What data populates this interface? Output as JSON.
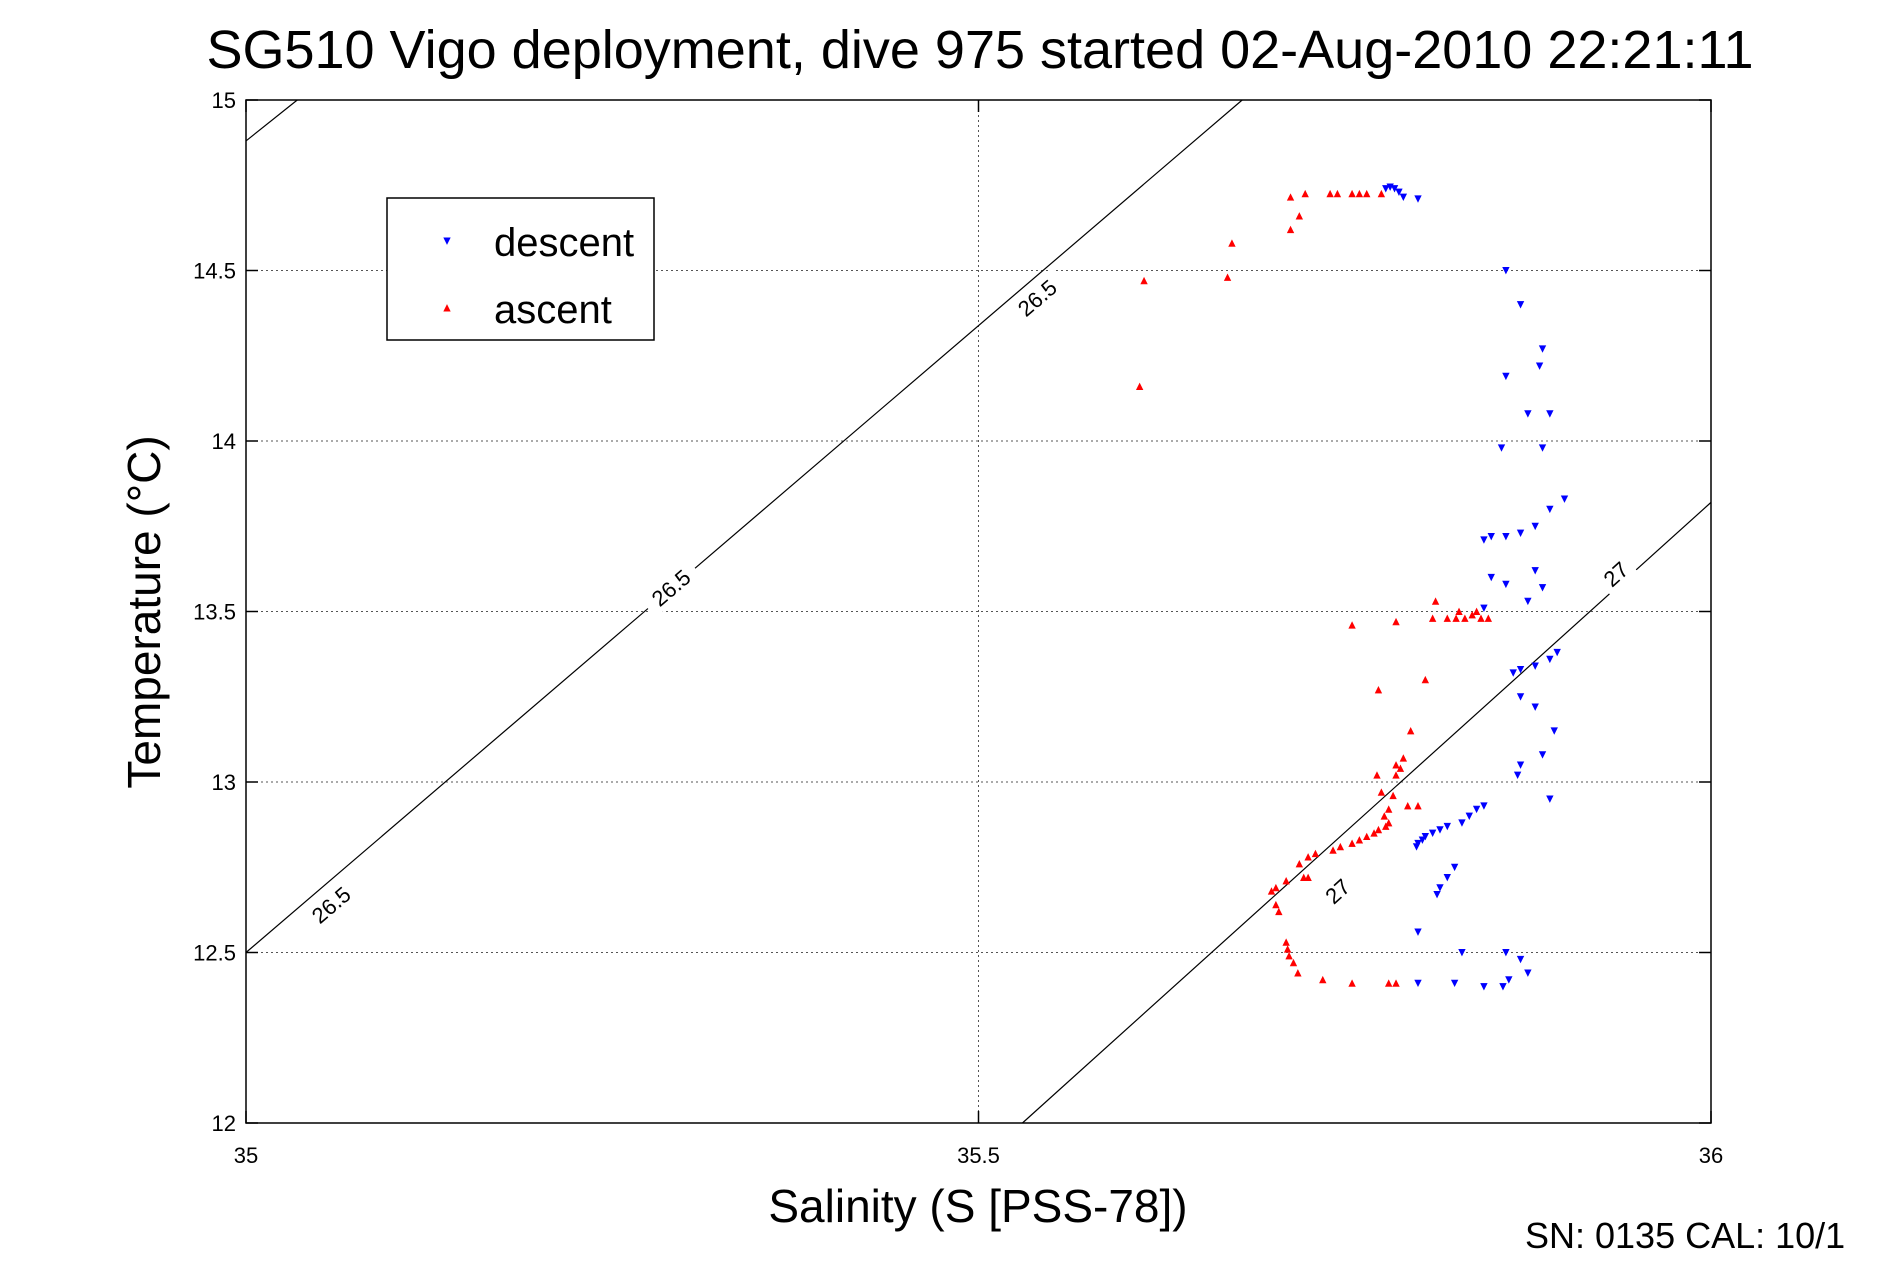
{
  "chart_data": {
    "type": "scatter",
    "title": "SG510 Vigo deployment, dive 975 started 02-Aug-2010 22:21:11",
    "xlabel": "Salinity (S [PSS-78])",
    "ylabel": "Temperature (°C)",
    "xlim": [
      35,
      36
    ],
    "ylim": [
      12,
      15
    ],
    "x_ticks": [
      "35",
      "35.5",
      "36"
    ],
    "y_ticks": [
      "12",
      "12.5",
      "13",
      "13.5",
      "14",
      "14.5",
      "15"
    ],
    "grid": true,
    "legend_position": "top-left",
    "contours": [
      {
        "value": "26.5",
        "lines": [
          [
            [
              35,
              14.88
            ],
            [
              35.035,
              15
            ]
          ],
          [
            [
              35,
              12.5
            ],
            [
              35.68,
              15
            ]
          ]
        ],
        "labels": [
          [
            35.058,
            12.64
          ],
          [
            35.29,
            13.57
          ],
          [
            35.54,
            14.42
          ]
        ]
      },
      {
        "value": "27",
        "lines": [
          [
            [
              35.53,
              12
            ],
            [
              36,
              13.82
            ]
          ]
        ],
        "labels": [
          [
            35.745,
            12.68
          ],
          [
            35.935,
            13.61
          ]
        ]
      }
    ],
    "series": [
      {
        "name": "descent",
        "color": "#0000ff",
        "marker": "triangle-down",
        "points": [
          [
            35.778,
            14.74
          ],
          [
            35.781,
            14.745
          ],
          [
            35.784,
            14.74
          ],
          [
            35.787,
            14.73
          ],
          [
            35.79,
            14.715
          ],
          [
            35.8,
            14.71
          ],
          [
            35.86,
            14.5
          ],
          [
            35.87,
            14.4
          ],
          [
            35.885,
            14.27
          ],
          [
            35.883,
            14.22
          ],
          [
            35.86,
            14.19
          ],
          [
            35.875,
            14.08
          ],
          [
            35.89,
            14.08
          ],
          [
            35.857,
            13.98
          ],
          [
            35.885,
            13.98
          ],
          [
            35.9,
            13.83
          ],
          [
            35.89,
            13.8
          ],
          [
            35.88,
            13.75
          ],
          [
            35.87,
            13.73
          ],
          [
            35.86,
            13.72
          ],
          [
            35.85,
            13.72
          ],
          [
            35.845,
            13.71
          ],
          [
            35.88,
            13.62
          ],
          [
            35.85,
            13.6
          ],
          [
            35.86,
            13.58
          ],
          [
            35.885,
            13.57
          ],
          [
            35.875,
            13.53
          ],
          [
            35.845,
            13.51
          ],
          [
            35.895,
            13.38
          ],
          [
            35.89,
            13.36
          ],
          [
            35.88,
            13.34
          ],
          [
            35.87,
            13.33
          ],
          [
            35.865,
            13.32
          ],
          [
            35.87,
            13.25
          ],
          [
            35.88,
            13.22
          ],
          [
            35.893,
            13.15
          ],
          [
            35.885,
            13.08
          ],
          [
            35.87,
            13.05
          ],
          [
            35.868,
            13.02
          ],
          [
            35.89,
            12.95
          ],
          [
            35.845,
            12.93
          ],
          [
            35.84,
            12.92
          ],
          [
            35.835,
            12.9
          ],
          [
            35.83,
            12.88
          ],
          [
            35.82,
            12.87
          ],
          [
            35.815,
            12.86
          ],
          [
            35.81,
            12.85
          ],
          [
            35.805,
            12.84
          ],
          [
            35.803,
            12.83
          ],
          [
            35.8,
            12.82
          ],
          [
            35.799,
            12.81
          ],
          [
            35.825,
            12.75
          ],
          [
            35.82,
            12.72
          ],
          [
            35.815,
            12.69
          ],
          [
            35.813,
            12.67
          ],
          [
            35.8,
            12.56
          ],
          [
            35.83,
            12.5
          ],
          [
            35.86,
            12.5
          ],
          [
            35.87,
            12.48
          ],
          [
            35.875,
            12.44
          ],
          [
            35.862,
            12.42
          ],
          [
            35.858,
            12.4
          ],
          [
            35.845,
            12.4
          ],
          [
            35.825,
            12.41
          ],
          [
            35.8,
            12.41
          ]
        ]
      },
      {
        "name": "ascent",
        "color": "#ff0000",
        "marker": "triangle-up",
        "points": [
          [
            35.775,
            14.725
          ],
          [
            35.765,
            14.725
          ],
          [
            35.76,
            14.725
          ],
          [
            35.755,
            14.725
          ],
          [
            35.745,
            14.725
          ],
          [
            35.74,
            14.725
          ],
          [
            35.723,
            14.725
          ],
          [
            35.713,
            14.715
          ],
          [
            35.719,
            14.66
          ],
          [
            35.713,
            14.62
          ],
          [
            35.673,
            14.58
          ],
          [
            35.67,
            14.48
          ],
          [
            35.613,
            14.47
          ],
          [
            35.61,
            14.16
          ],
          [
            35.812,
            13.53
          ],
          [
            35.84,
            13.5
          ],
          [
            35.828,
            13.5
          ],
          [
            35.826,
            13.48
          ],
          [
            35.832,
            13.48
          ],
          [
            35.837,
            13.49
          ],
          [
            35.843,
            13.48
          ],
          [
            35.848,
            13.48
          ],
          [
            35.82,
            13.48
          ],
          [
            35.81,
            13.48
          ],
          [
            35.785,
            13.47
          ],
          [
            35.755,
            13.46
          ],
          [
            35.805,
            13.3
          ],
          [
            35.773,
            13.27
          ],
          [
            35.795,
            13.15
          ],
          [
            35.79,
            13.07
          ],
          [
            35.785,
            13.05
          ],
          [
            35.788,
            13.04
          ],
          [
            35.785,
            13.02
          ],
          [
            35.772,
            13.02
          ],
          [
            35.775,
            12.97
          ],
          [
            35.783,
            12.96
          ],
          [
            35.793,
            12.93
          ],
          [
            35.8,
            12.93
          ],
          [
            35.78,
            12.92
          ],
          [
            35.777,
            12.9
          ],
          [
            35.78,
            12.88
          ],
          [
            35.778,
            12.87
          ],
          [
            35.773,
            12.86
          ],
          [
            35.77,
            12.85
          ],
          [
            35.765,
            12.84
          ],
          [
            35.76,
            12.83
          ],
          [
            35.755,
            12.82
          ],
          [
            35.747,
            12.81
          ],
          [
            35.742,
            12.8
          ],
          [
            35.73,
            12.79
          ],
          [
            35.725,
            12.78
          ],
          [
            35.719,
            12.76
          ],
          [
            35.722,
            12.72
          ],
          [
            35.71,
            12.71
          ],
          [
            35.725,
            12.72
          ],
          [
            35.703,
            12.69
          ],
          [
            35.7,
            12.68
          ],
          [
            35.703,
            12.64
          ],
          [
            35.705,
            12.62
          ],
          [
            35.71,
            12.53
          ],
          [
            35.711,
            12.51
          ],
          [
            35.712,
            12.49
          ],
          [
            35.715,
            12.47
          ],
          [
            35.718,
            12.44
          ],
          [
            35.735,
            12.42
          ],
          [
            35.755,
            12.41
          ],
          [
            35.78,
            12.41
          ],
          [
            35.785,
            12.41
          ]
        ]
      }
    ],
    "footer": "SN: 0135  CAL: 10/1"
  }
}
